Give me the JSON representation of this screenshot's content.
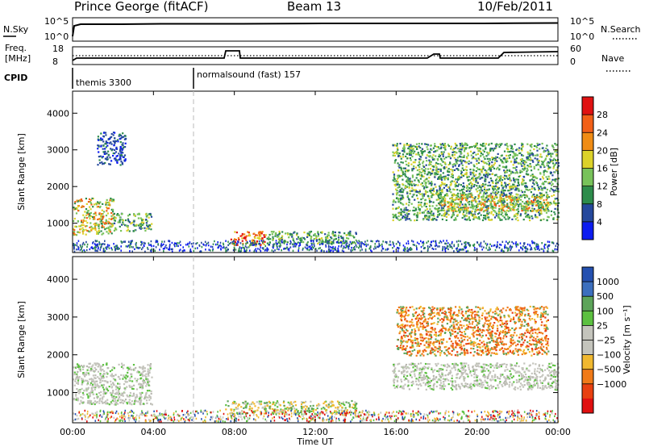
{
  "header": {
    "station": "Prince George (fitACF)",
    "beam": "Beam 13",
    "date": "10/Feb/2011"
  },
  "params": {
    "nsky_label": "N.Sky",
    "nsearch_label": "N.Search",
    "nsky_ticks": [
      "10^5",
      "10^0"
    ],
    "nsearch_ticks": [
      "10^5",
      "10^0"
    ],
    "freq_label_1": "Freq.",
    "freq_label_2": "[MHz]",
    "freq_ticks": [
      "18",
      "8"
    ],
    "nave_label": "Nave",
    "nave_ticks": [
      "60",
      "0"
    ],
    "cpid_label": "CPID",
    "cpid_segments": [
      {
        "label": "themis 3300",
        "start_hour": 0
      },
      {
        "label": "normalsound (fast) 157",
        "start_hour": 6
      }
    ]
  },
  "chart_data": [
    {
      "type": "heatmap",
      "name": "power",
      "ylabel": "Slant Range [km]",
      "yticks": [
        "1000",
        "2000",
        "3000",
        "4000"
      ],
      "ylim": [
        200,
        4600
      ],
      "xlim": [
        0,
        24
      ],
      "colorbar": {
        "label": "Power [dB]",
        "ticks": [
          "4",
          "8",
          "12",
          "16",
          "20",
          "24",
          "28"
        ],
        "range": [
          0,
          32
        ],
        "colors": [
          "#0c1cf0",
          "#25489c",
          "#2d8c4b",
          "#78c25a",
          "#dcd22a",
          "#f08c14",
          "#f26018",
          "#e01212"
        ]
      },
      "regions": [
        {
          "t": [
            0.0,
            2.0
          ],
          "r": [
            700,
            1700
          ],
          "level": "high"
        },
        {
          "t": [
            2.0,
            3.9
          ],
          "r": [
            800,
            1300
          ],
          "level": "mid"
        },
        {
          "t": [
            1.2,
            2.6
          ],
          "r": [
            2600,
            3500
          ],
          "level": "low"
        },
        {
          "t": [
            7.8,
            9.5
          ],
          "r": [
            400,
            800
          ],
          "level": "peak"
        },
        {
          "t": [
            9.5,
            14.0
          ],
          "r": [
            450,
            800
          ],
          "level": "mid"
        },
        {
          "t": [
            15.8,
            24.0
          ],
          "r": [
            1100,
            3200
          ],
          "level": "mid"
        },
        {
          "t": [
            18.0,
            23.5
          ],
          "r": [
            1350,
            1800
          ],
          "level": "high"
        }
      ]
    },
    {
      "type": "heatmap",
      "name": "velocity",
      "ylabel": "Slant Range [km]",
      "yticks": [
        "1000",
        "2000",
        "3000",
        "4000"
      ],
      "ylim": [
        200,
        4600
      ],
      "xlim": [
        0,
        24
      ],
      "colorbar": {
        "label": "Velocity  [m s⁻¹]",
        "ticks": [
          "1000",
          "500",
          "100",
          "25",
          "−25",
          "−100",
          "−500",
          "−1000"
        ],
        "colors": [
          "#2450b0",
          "#3c6fbe",
          "#5da45a",
          "#5cc040",
          "#c4c4bc",
          "#c4c4bc",
          "#f0b830",
          "#f07a18",
          "#e84010",
          "#e01010"
        ]
      },
      "regions": [
        {
          "t": [
            0.0,
            3.9
          ],
          "r": [
            700,
            1800
          ],
          "kind": "ground scatter"
        },
        {
          "t": [
            15.8,
            24.0
          ],
          "r": [
            1100,
            1800
          ],
          "kind": "ground scatter"
        },
        {
          "t": [
            16.0,
            23.5
          ],
          "r": [
            2000,
            3300
          ],
          "kind": "negative velocity"
        },
        {
          "t": [
            7.5,
            14.0
          ],
          "r": [
            450,
            800
          ],
          "kind": "mixed velocity"
        }
      ]
    }
  ],
  "xaxis": {
    "label": "Time UT",
    "ticks": [
      "00:00",
      "04:00",
      "08:00",
      "12:00",
      "16:00",
      "20:00",
      "00:00"
    ]
  }
}
